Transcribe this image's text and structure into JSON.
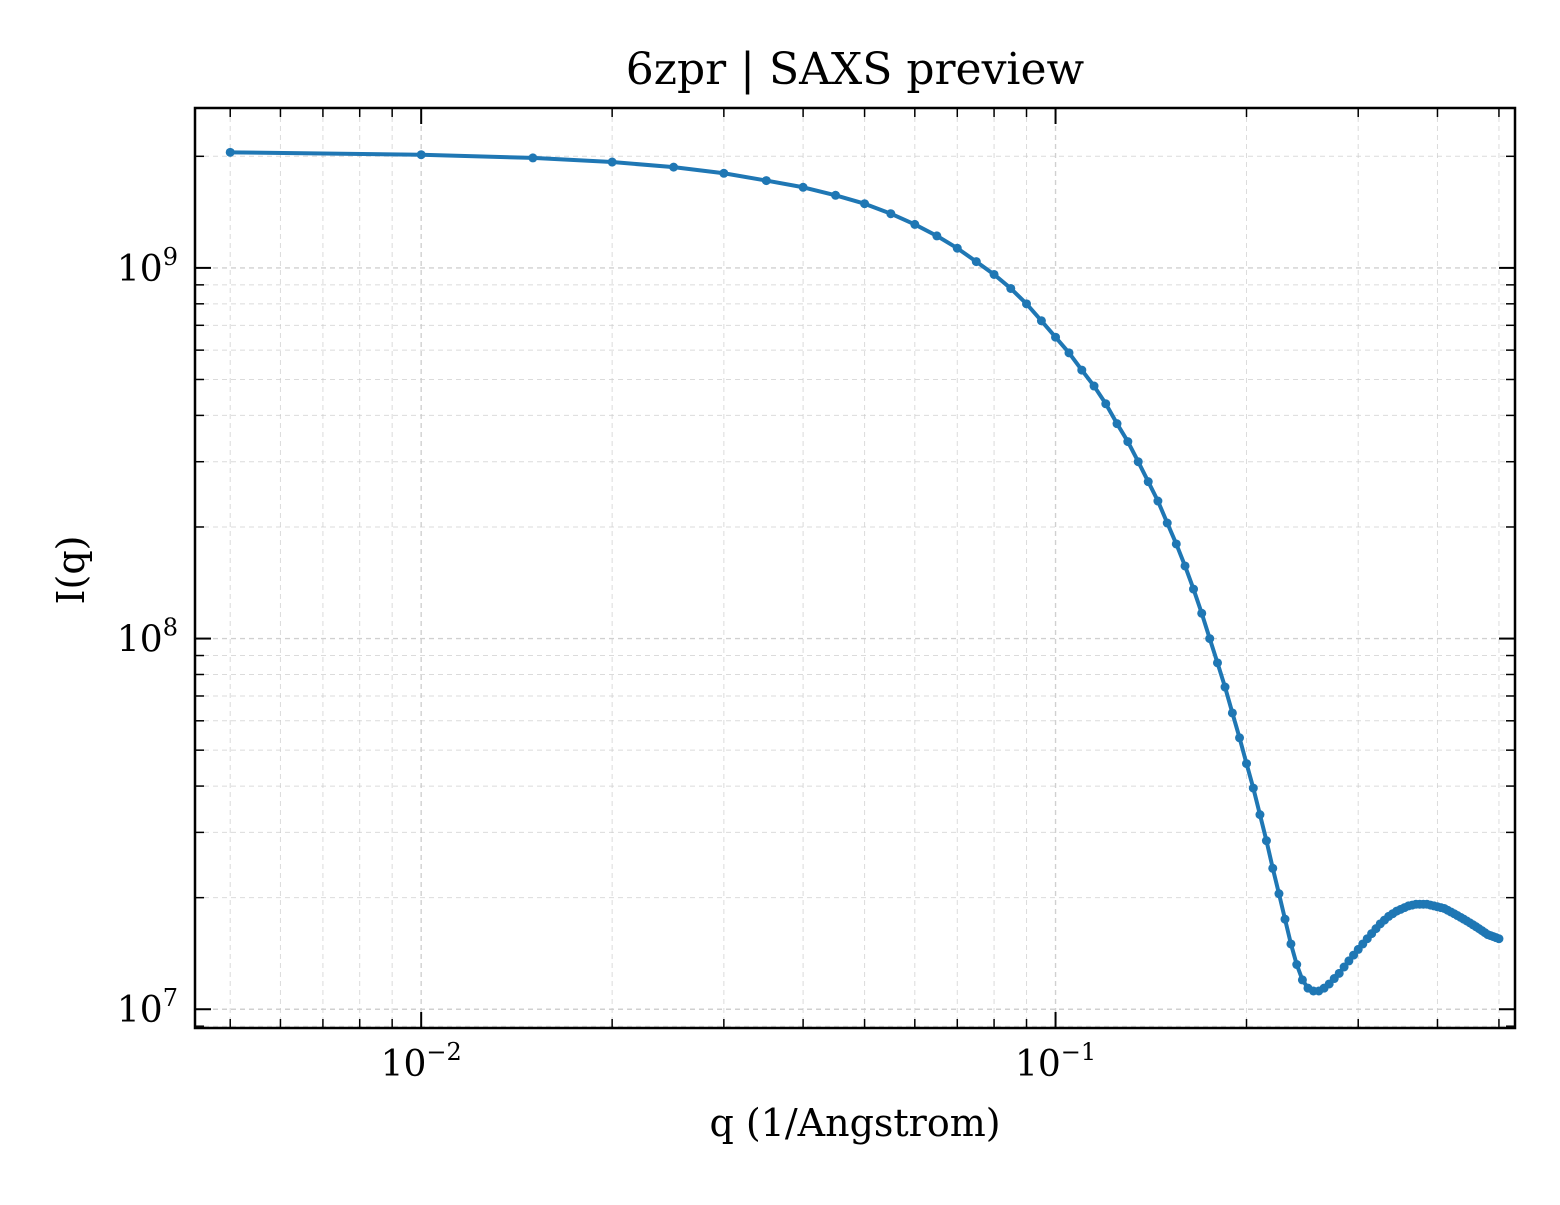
{
  "chart_data": {
    "type": "line",
    "title": "6zpr | SAXS preview",
    "xlabel": "q (1/Angstrom)",
    "ylabel": "I(q)",
    "x_scale": "log",
    "y_scale": "log",
    "xlim": [
      0.0044,
      0.53
    ],
    "ylim": [
      8900000.0,
      2700000000.0
    ],
    "grid": true,
    "legend": "none",
    "x_ticks": [
      {
        "value": 0.01,
        "base": "10",
        "exp": "−2"
      },
      {
        "value": 0.1,
        "base": "10",
        "exp": "−1"
      }
    ],
    "y_ticks": [
      {
        "value": 10000000.0,
        "base": "10",
        "exp": "7"
      },
      {
        "value": 100000000.0,
        "base": "10",
        "exp": "8"
      },
      {
        "value": 1000000000.0,
        "base": "10",
        "exp": "9"
      }
    ],
    "series": [
      {
        "color": "#1f77b4",
        "x": [
          0.005,
          0.01,
          0.015,
          0.02,
          0.025,
          0.03,
          0.035,
          0.04,
          0.045,
          0.05,
          0.055,
          0.06,
          0.065,
          0.07,
          0.075,
          0.08,
          0.085,
          0.09,
          0.095,
          0.1,
          0.105,
          0.11,
          0.115,
          0.12,
          0.125,
          0.13,
          0.135,
          0.14,
          0.145,
          0.15,
          0.155,
          0.16,
          0.165,
          0.17,
          0.175,
          0.18,
          0.185,
          0.19,
          0.195,
          0.2,
          0.205,
          0.21,
          0.215,
          0.22,
          0.225,
          0.23,
          0.235,
          0.24,
          0.245,
          0.25,
          0.255,
          0.26,
          0.265,
          0.27,
          0.275,
          0.28,
          0.285,
          0.29,
          0.295,
          0.3,
          0.305,
          0.31,
          0.315,
          0.32,
          0.325,
          0.33,
          0.335,
          0.34,
          0.345,
          0.35,
          0.355,
          0.36,
          0.365,
          0.37,
          0.375,
          0.38,
          0.385,
          0.39,
          0.395,
          0.4,
          0.405,
          0.41,
          0.415,
          0.42,
          0.425,
          0.43,
          0.435,
          0.44,
          0.445,
          0.45,
          0.455,
          0.46,
          0.465,
          0.47,
          0.475,
          0.48,
          0.485,
          0.49,
          0.495,
          0.5
        ],
        "y": [
          2050000000.0,
          2020000000.0,
          1980000000.0,
          1930000000.0,
          1870000000.0,
          1800000000.0,
          1720000000.0,
          1650000000.0,
          1570000000.0,
          1490000000.0,
          1400000000.0,
          1310000000.0,
          1220000000.0,
          1130000000.0,
          1040000000.0,
          960000000.0,
          880000000.0,
          800000000.0,
          720000000.0,
          650000000.0,
          590000000.0,
          530000000.0,
          480000000.0,
          430000000.0,
          380000000.0,
          340000000.0,
          300000000.0,
          265000000.0,
          235000000.0,
          205000000.0,
          180000000.0,
          157000000.0,
          136000000.0,
          117000000.0,
          100000000.0,
          86000000.0,
          74000000.0,
          63000000.0,
          54000000.0,
          46000000.0,
          39500000.0,
          33500000.0,
          28500000.0,
          24000000.0,
          20500000.0,
          17500000.0,
          15000000.0,
          13200000.0,
          12000000.0,
          11400000.0,
          11200000.0,
          11200000.0,
          11400000.0,
          11700000.0,
          12100000.0,
          12500000.0,
          13000000.0,
          13500000.0,
          14000000.0,
          14500000.0,
          15000000.0,
          15500000.0,
          16000000.0,
          16500000.0,
          17000000.0,
          17400000.0,
          17800000.0,
          18100000.0,
          18400000.0,
          18600000.0,
          18800000.0,
          19000000.0,
          19100000.0,
          19200000.0,
          19200000.0,
          19200000.0,
          19200000.0,
          19100000.0,
          19000000.0,
          18900000.0,
          18800000.0,
          18700000.0,
          18500000.0,
          18300000.0,
          18100000.0,
          17900000.0,
          17700000.0,
          17500000.0,
          17300000.0,
          17100000.0,
          16900000.0,
          16700000.0,
          16500000.0,
          16300000.0,
          16100000.0,
          15900000.0,
          15800000.0,
          15700000.0,
          15600000.0,
          15500000.0
        ]
      }
    ]
  }
}
